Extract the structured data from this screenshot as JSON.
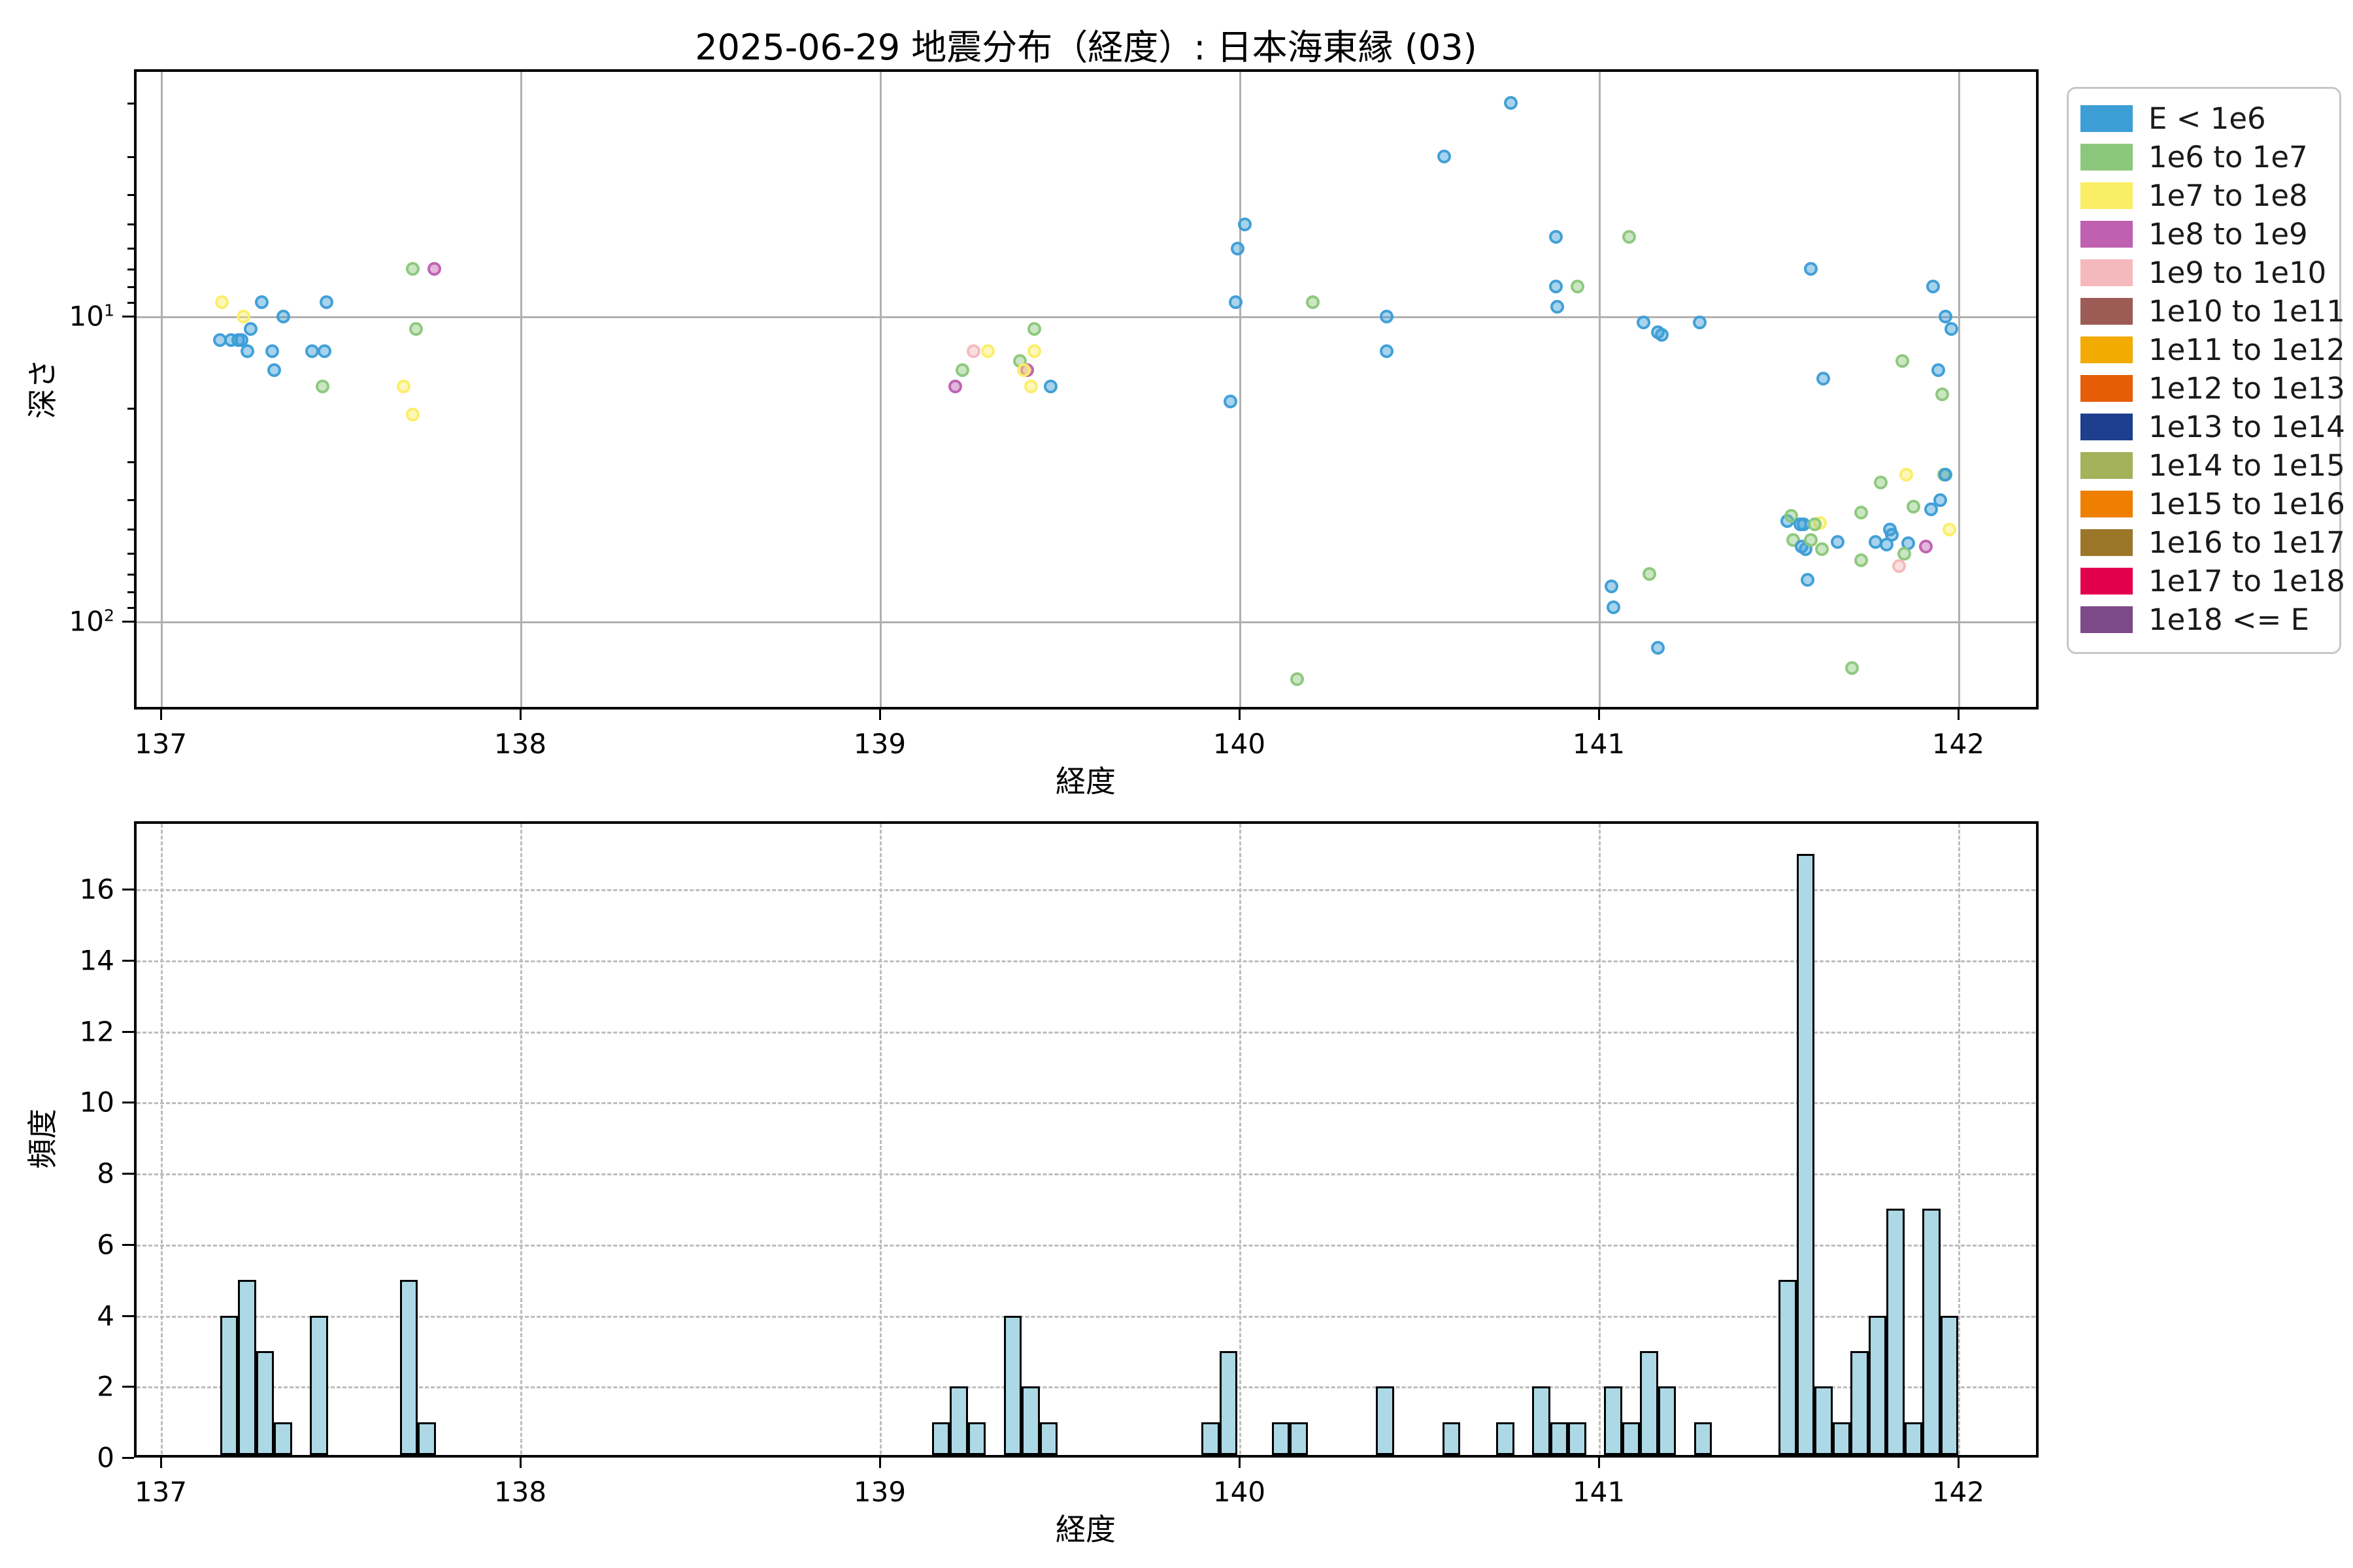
{
  "chart_data": [
    {
      "type": "scatter",
      "title": "2025-06-29 地震分布（経度）: 日本海東縁 (03)",
      "xlabel": "経度",
      "ylabel": "深さ",
      "xticks": [
        137,
        138,
        139,
        140,
        141,
        142
      ],
      "xlim": [
        136.925,
        142.22
      ],
      "yscale": "log-inverted",
      "ylim_depth": [
        1.55,
        195
      ],
      "ytick_exponents": [
        1,
        2
      ],
      "grid": "solid",
      "legend": {
        "position": "outside-right",
        "items": [
          {
            "label": "E < 1e6",
            "color": "#3d9ed6"
          },
          {
            "label": "1e6 to 1e7",
            "color": "#8cc87b"
          },
          {
            "label": "1e7 to 1e8",
            "color": "#fbee67"
          },
          {
            "label": "1e8 to 1e9",
            "color": "#bf60b0"
          },
          {
            "label": "1e9 to 1e10",
            "color": "#f5b8bc"
          },
          {
            "label": "1e10 to 1e11",
            "color": "#9c5b54"
          },
          {
            "label": "1e11 to 1e12",
            "color": "#f2ab00"
          },
          {
            "label": "1e12 to 1e13",
            "color": "#e55e07"
          },
          {
            "label": "1e13 to 1e14",
            "color": "#1e3e8e"
          },
          {
            "label": "1e14 to 1e15",
            "color": "#a3b25b"
          },
          {
            "label": "1e15 to 1e16",
            "color": "#ee7f00"
          },
          {
            "label": "1e16 to 1e17",
            "color": "#9b7628"
          },
          {
            "label": "1e17 to 1e18",
            "color": "#e2004d"
          },
          {
            "label": "1e18 <= E",
            "color": "#7c4a87"
          }
        ]
      },
      "points_format": [
        "longitude",
        "depth_km",
        "energy_category_index"
      ],
      "points": [
        [
          137.17,
          9,
          2
        ],
        [
          137.23,
          10,
          2
        ],
        [
          137.28,
          9,
          0
        ],
        [
          137.34,
          10,
          0
        ],
        [
          137.46,
          9,
          0
        ],
        [
          137.25,
          11,
          0
        ],
        [
          137.165,
          12,
          0
        ],
        [
          137.195,
          12,
          0
        ],
        [
          137.215,
          12,
          0
        ],
        [
          137.225,
          12,
          0
        ],
        [
          137.24,
          13,
          0
        ],
        [
          137.31,
          13,
          0
        ],
        [
          137.42,
          13,
          0
        ],
        [
          137.455,
          13,
          0
        ],
        [
          137.315,
          15,
          0
        ],
        [
          137.45,
          17,
          1
        ],
        [
          137.7,
          7,
          1
        ],
        [
          137.76,
          7,
          3
        ],
        [
          137.71,
          11,
          1
        ],
        [
          137.675,
          17,
          2
        ],
        [
          137.7,
          21,
          2
        ],
        [
          139.43,
          11,
          1
        ],
        [
          139.26,
          13,
          4
        ],
        [
          139.3,
          13,
          2
        ],
        [
          139.43,
          13,
          2
        ],
        [
          139.39,
          14,
          1
        ],
        [
          139.23,
          15,
          1
        ],
        [
          139.41,
          15,
          3
        ],
        [
          139.4,
          15,
          2
        ],
        [
          139.21,
          17,
          3
        ],
        [
          139.42,
          17,
          2
        ],
        [
          139.475,
          17,
          0
        ],
        [
          140.755,
          2,
          0
        ],
        [
          140.57,
          3,
          0
        ],
        [
          140.015,
          5,
          0
        ],
        [
          139.995,
          6,
          0
        ],
        [
          139.99,
          9,
          0
        ],
        [
          140.205,
          9,
          1
        ],
        [
          140.41,
          10,
          0
        ],
        [
          140.41,
          13,
          0
        ],
        [
          139.975,
          19,
          0
        ],
        [
          140.16,
          155,
          1
        ],
        [
          140.88,
          5.5,
          0
        ],
        [
          141.085,
          5.5,
          1
        ],
        [
          140.88,
          8,
          0
        ],
        [
          140.94,
          8,
          1
        ],
        [
          140.885,
          9.3,
          0
        ],
        [
          141.125,
          10.5,
          0
        ],
        [
          141.165,
          11.3,
          0
        ],
        [
          141.175,
          11.5,
          0
        ],
        [
          141.28,
          10.5,
          0
        ],
        [
          141.035,
          77,
          0
        ],
        [
          141.04,
          90,
          0
        ],
        [
          141.14,
          70,
          1
        ],
        [
          141.165,
          122,
          0
        ],
        [
          141.705,
          142,
          1
        ],
        [
          141.58,
          73,
          0
        ],
        [
          141.525,
          47,
          0
        ],
        [
          141.535,
          45,
          1
        ],
        [
          141.56,
          48,
          0
        ],
        [
          141.57,
          48,
          0
        ],
        [
          141.615,
          47.5,
          2
        ],
        [
          141.6,
          48,
          1
        ],
        [
          141.54,
          54,
          1
        ],
        [
          141.565,
          57,
          0
        ],
        [
          141.575,
          58,
          0
        ],
        [
          141.59,
          54,
          1
        ],
        [
          141.62,
          58,
          1
        ],
        [
          141.665,
          55,
          0
        ],
        [
          141.73,
          44,
          1
        ],
        [
          141.875,
          42,
          1
        ],
        [
          141.925,
          43,
          0
        ],
        [
          141.95,
          40,
          0
        ],
        [
          141.975,
          50,
          2
        ],
        [
          141.77,
          55,
          0
        ],
        [
          141.81,
          50,
          0
        ],
        [
          141.815,
          52,
          0
        ],
        [
          141.8,
          56,
          0
        ],
        [
          141.86,
          55.5,
          0
        ],
        [
          141.85,
          60,
          1
        ],
        [
          141.91,
          57,
          3
        ],
        [
          141.73,
          63,
          1
        ],
        [
          141.835,
          66,
          4
        ],
        [
          141.59,
          7,
          0
        ],
        [
          141.93,
          8,
          0
        ],
        [
          141.965,
          10,
          0
        ],
        [
          141.98,
          11,
          0
        ],
        [
          141.845,
          14,
          1
        ],
        [
          141.945,
          15,
          0
        ],
        [
          141.625,
          16,
          0
        ],
        [
          141.955,
          18,
          1
        ],
        [
          141.785,
          35,
          1
        ],
        [
          141.855,
          33,
          2
        ],
        [
          141.96,
          33,
          1
        ],
        [
          141.965,
          33,
          0
        ]
      ]
    },
    {
      "type": "bar",
      "xlabel": "経度",
      "ylabel": "頻度",
      "xticks": [
        137,
        138,
        139,
        140,
        141,
        142
      ],
      "yticks": [
        0,
        2,
        4,
        6,
        8,
        10,
        12,
        14,
        16
      ],
      "ylim": [
        0,
        17.9
      ],
      "grid": "dashed",
      "bar_color": "#add8e6",
      "bar_edge_color": "#000000",
      "bin_width": 0.05,
      "bars_format": [
        "bin_left_longitude",
        "count"
      ],
      "bars": [
        [
          137.165,
          4
        ],
        [
          137.215,
          5
        ],
        [
          137.265,
          3
        ],
        [
          137.315,
          1
        ],
        [
          137.415,
          4
        ],
        [
          137.665,
          5
        ],
        [
          137.715,
          1
        ],
        [
          139.145,
          1
        ],
        [
          139.195,
          2
        ],
        [
          139.245,
          1
        ],
        [
          139.345,
          4
        ],
        [
          139.395,
          2
        ],
        [
          139.445,
          1
        ],
        [
          139.895,
          1
        ],
        [
          139.945,
          3
        ],
        [
          140.09,
          1
        ],
        [
          140.14,
          1
        ],
        [
          140.38,
          2
        ],
        [
          140.565,
          1
        ],
        [
          140.715,
          1
        ],
        [
          140.815,
          2
        ],
        [
          140.865,
          1
        ],
        [
          140.915,
          1
        ],
        [
          141.015,
          2
        ],
        [
          141.065,
          1
        ],
        [
          141.115,
          3
        ],
        [
          141.165,
          2
        ],
        [
          141.265,
          1
        ],
        [
          141.5,
          5
        ],
        [
          141.55,
          17
        ],
        [
          141.6,
          2
        ],
        [
          141.65,
          1
        ],
        [
          141.7,
          3
        ],
        [
          141.75,
          4
        ],
        [
          141.8,
          7
        ],
        [
          141.85,
          1
        ],
        [
          141.9,
          7
        ],
        [
          141.95,
          4
        ]
      ]
    }
  ]
}
